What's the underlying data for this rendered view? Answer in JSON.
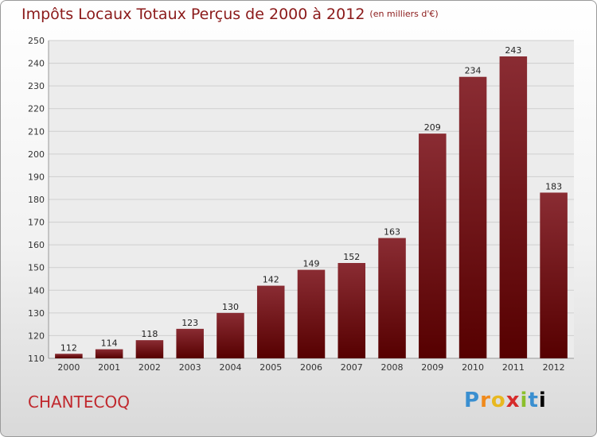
{
  "header": {
    "title": "Impôts Locaux Totaux Perçus de 2000 à 2012",
    "subtitle": "(en milliers d'€)"
  },
  "footer": {
    "commune": "CHANTECOQ",
    "logo_letters": [
      "P",
      "r",
      "o",
      "x",
      "i",
      "t",
      "i"
    ]
  },
  "colors": {
    "bar_top": "#8a2c33",
    "bar_bottom": "#560000",
    "title": "#8b1a1a",
    "commune": "#c0282d"
  },
  "chart_data": {
    "type": "bar",
    "title": "Impôts Locaux Totaux Perçus de 2000 à 2012",
    "subtitle": "(en milliers d'€)",
    "xlabel": "",
    "ylabel": "",
    "categories": [
      "2000",
      "2001",
      "2002",
      "2003",
      "2004",
      "2005",
      "2006",
      "2007",
      "2008",
      "2009",
      "2010",
      "2011",
      "2012"
    ],
    "values": [
      112,
      114,
      118,
      123,
      130,
      142,
      149,
      152,
      163,
      209,
      234,
      243,
      183
    ],
    "ylim": [
      110,
      250
    ],
    "yticks": [
      110,
      120,
      130,
      140,
      150,
      160,
      170,
      180,
      190,
      200,
      210,
      220,
      230,
      240,
      250
    ],
    "grid": true,
    "legend": "none"
  }
}
